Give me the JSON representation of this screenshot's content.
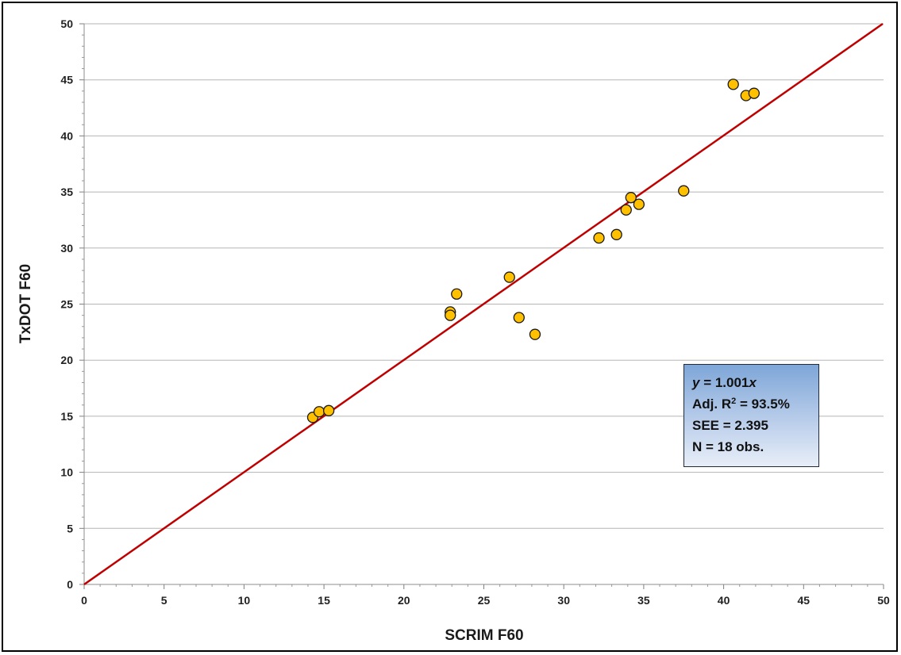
{
  "chart_data": {
    "type": "scatter",
    "xlabel": "SCRIM F60",
    "ylabel": "TxDOT F60",
    "xlim": [
      0,
      50
    ],
    "ylim": [
      0,
      50
    ],
    "xticks": [
      "0",
      "5",
      "10",
      "15",
      "20",
      "25",
      "30",
      "35",
      "40",
      "45",
      "50"
    ],
    "yticks": [
      "0",
      "5",
      "10",
      "15",
      "20",
      "25",
      "30",
      "35",
      "40",
      "45",
      "50"
    ],
    "grid": "horizontal major gridlines",
    "points": [
      {
        "x": 14.3,
        "y": 14.9
      },
      {
        "x": 14.7,
        "y": 15.4
      },
      {
        "x": 15.3,
        "y": 15.5
      },
      {
        "x": 22.9,
        "y": 24.3
      },
      {
        "x": 22.9,
        "y": 24.0
      },
      {
        "x": 23.3,
        "y": 25.9
      },
      {
        "x": 26.6,
        "y": 27.4
      },
      {
        "x": 27.2,
        "y": 23.8
      },
      {
        "x": 28.2,
        "y": 22.3
      },
      {
        "x": 32.2,
        "y": 30.9
      },
      {
        "x": 33.3,
        "y": 31.2
      },
      {
        "x": 33.9,
        "y": 33.4
      },
      {
        "x": 34.2,
        "y": 34.5
      },
      {
        "x": 34.7,
        "y": 33.9
      },
      {
        "x": 37.5,
        "y": 35.1
      },
      {
        "x": 40.6,
        "y": 44.6
      },
      {
        "x": 41.4,
        "y": 43.6
      },
      {
        "x": 41.9,
        "y": 43.8
      }
    ],
    "trendline": {
      "slope": 1.001,
      "x_range": [
        0,
        50
      ]
    },
    "marker_color": "#ffc000",
    "marker_edge_color": "#1a1a1a",
    "line_color": "#c00000",
    "stats_box": {
      "placement": "lower-right",
      "eq_y": "y",
      "eq_mid": " = 1.001",
      "eq_x": "x",
      "r2_prefix": "Adj. R",
      "r2_sup": "2",
      "r2_suffix": " = 93.5%",
      "see": "SEE = 2.395",
      "n": "N = 18 obs."
    }
  }
}
